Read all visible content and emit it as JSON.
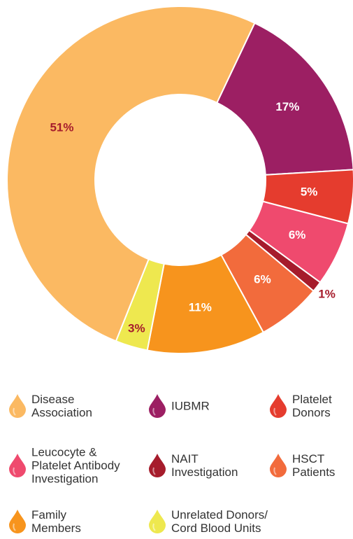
{
  "chart_data": {
    "type": "donut",
    "categories": [
      "IUBMR",
      "Platelet\nDonors",
      "Leucocyte &\nPlatelet Antibody\nInvestigation",
      "NAIT\nInvestigation",
      "HSCT\nPatients",
      "Family\nMembers",
      "Unrelated Donors/\nCord Blood Units",
      "Disease\nAssociation"
    ],
    "values": [
      17,
      5,
      6,
      1,
      6,
      11,
      3,
      51
    ],
    "value_labels": [
      "17%",
      "5%",
      "6%",
      "1%",
      "6%",
      "11%",
      "3%",
      "51%"
    ],
    "colors": [
      "#9c1f63",
      "#e53c2e",
      "#ef4a6e",
      "#a61c2c",
      "#f26b3c",
      "#f7941d",
      "#eee84f",
      "#fbb962"
    ]
  }
}
